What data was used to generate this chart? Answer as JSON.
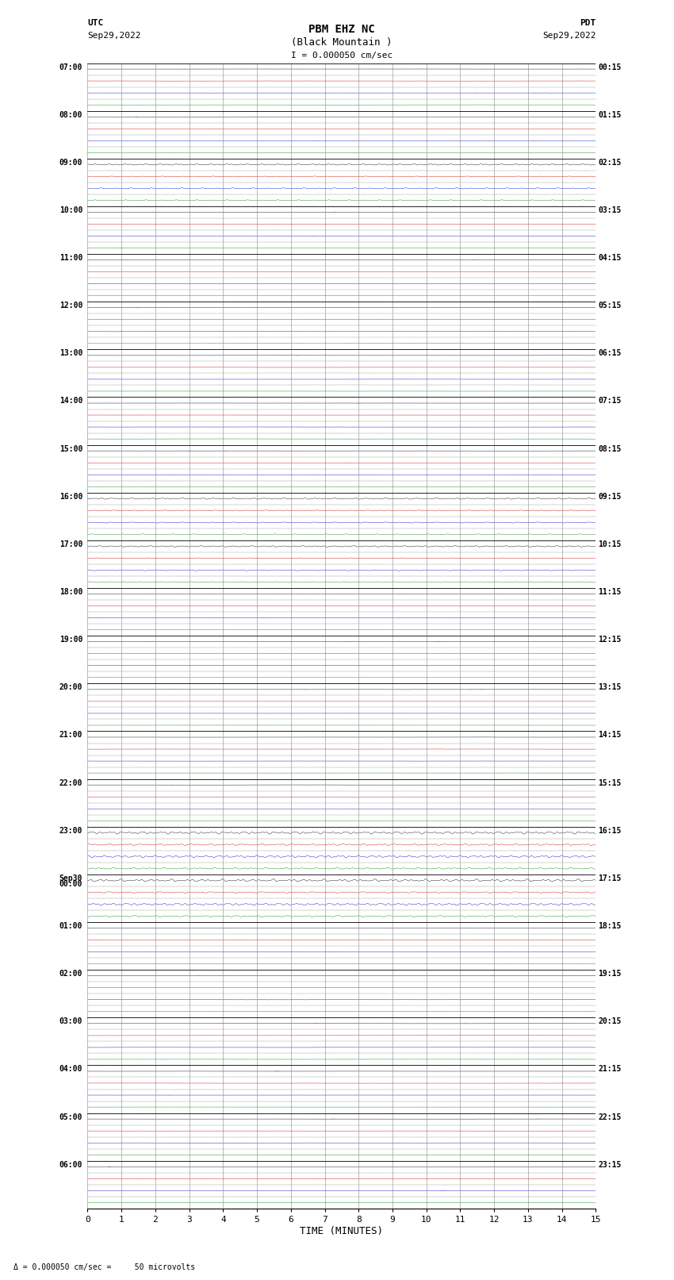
{
  "title_line1": "PBM EHZ NC",
  "title_line2": "(Black Mountain )",
  "scale_label": "I = 0.000050 cm/sec",
  "left_label_top": "UTC",
  "left_label_date": "Sep29,2022",
  "right_label_top": "PDT",
  "right_label_date": "Sep29,2022",
  "bottom_label": "TIME (MINUTES)",
  "footer_text": "Δ = 0.000050 cm/sec =     50 microvolts",
  "x_min": 0,
  "x_max": 15,
  "num_hour_rows": 24,
  "traces_per_row": 4,
  "background_color": "#ffffff",
  "trace_colors": [
    "#000000",
    "#cc0000",
    "#0000cc",
    "#008800"
  ],
  "left_time_labels": [
    "07:00",
    "08:00",
    "09:00",
    "10:00",
    "11:00",
    "12:00",
    "13:00",
    "14:00",
    "15:00",
    "16:00",
    "17:00",
    "18:00",
    "19:00",
    "20:00",
    "21:00",
    "22:00",
    "23:00",
    "Sep30\n00:00",
    "01:00",
    "02:00",
    "03:00",
    "04:00",
    "05:00",
    "06:00"
  ],
  "right_time_labels": [
    "00:15",
    "01:15",
    "02:15",
    "03:15",
    "04:15",
    "05:15",
    "06:15",
    "07:15",
    "08:15",
    "09:15",
    "10:15",
    "11:15",
    "12:15",
    "13:15",
    "14:15",
    "15:15",
    "16:15",
    "17:15",
    "18:15",
    "19:15",
    "20:15",
    "21:15",
    "22:15",
    "23:15"
  ],
  "noise_base": 0.015,
  "noise_scale": [
    1.0,
    0.6,
    0.8,
    0.7
  ],
  "event_hours": [
    2,
    9,
    10,
    16,
    17,
    24,
    25,
    28,
    31,
    32,
    35,
    36
  ],
  "large_event_hours": [
    16,
    17,
    24,
    25
  ]
}
